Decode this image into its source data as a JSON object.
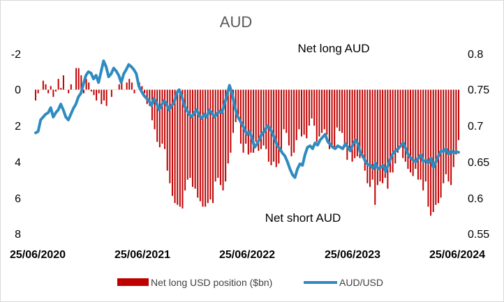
{
  "chart_data": {
    "type": "bar+line",
    "title": "AUD",
    "annotations": [
      "Net long AUD",
      "Net short AUD"
    ],
    "x_tick_labels": [
      "25/06/2020",
      "25/06/2021",
      "25/06/2022",
      "25/06/2023",
      "25/06/2024"
    ],
    "left_axis": {
      "ticks": [
        "-2",
        "0",
        "2",
        "4",
        "6",
        "8"
      ],
      "range": [
        -2,
        8
      ],
      "inverted": true
    },
    "right_axis": {
      "ticks": [
        "0.8",
        "0.75",
        "0.7",
        "0.65",
        "0.6",
        "0.55"
      ],
      "range": [
        0.55,
        0.8
      ]
    },
    "legend_position": "bottom",
    "grid": false,
    "colors": {
      "bars": "#c00000",
      "line": "#2e8bc0",
      "text": "#000000"
    },
    "series": [
      {
        "name": "Net long USD position ($bn)",
        "kind": "bar",
        "axis": "left",
        "date_range": [
          "25/06/2020",
          "25/06/2024"
        ],
        "weekly_values_bn": [
          0.6,
          0.2,
          0.0,
          -0.5,
          -0.3,
          0.2,
          -0.2,
          0.4,
          0.1,
          -0.6,
          -0.1,
          -0.8,
          0.0,
          0.2,
          -0.3,
          0.0,
          -1.2,
          -1.2,
          -0.8,
          0.2,
          -0.6,
          -0.4,
          0.1,
          0.3,
          0.6,
          0.2,
          0.8,
          0.6,
          0.9,
          0.0,
          0.4,
          0.0,
          0.0,
          -0.3,
          -0.4,
          0.0,
          -0.4,
          -0.6,
          -0.4,
          0.2,
          0.0,
          -0.4,
          -0.2,
          0.2,
          0.8,
          0.9,
          1.7,
          2.2,
          2.9,
          3.2,
          3.0,
          3.3,
          4.5,
          5.2,
          5.9,
          6.3,
          6.4,
          6.5,
          6.6,
          5.6,
          5.0,
          4.9,
          5.4,
          5.5,
          6.0,
          6.2,
          6.5,
          6.5,
          6.3,
          6.1,
          6.3,
          5.1,
          4.9,
          5.3,
          5.6,
          5.1,
          4.1,
          3.5,
          2.4,
          1.8,
          1.4,
          3.0,
          3.5,
          3.0,
          3.6,
          3.5,
          3.5,
          2.9,
          3.4,
          3.3,
          3.1,
          3.3,
          4.0,
          4.2,
          4.0,
          4.3,
          4.1,
          3.5,
          2.2,
          2.4,
          3.1,
          3.7,
          3.5,
          2.8,
          2.2,
          2.6,
          2.5,
          2.7,
          2.0,
          1.6,
          2.0,
          2.9,
          2.6,
          2.4,
          2.2,
          2.5,
          3.3,
          3.2,
          3.3,
          2.1,
          2.3,
          2.4,
          3.2,
          3.9,
          3.4,
          4.0,
          3.8,
          3.7,
          3.8,
          3.8,
          4.5,
          5.2,
          5.4,
          5.0,
          6.4,
          5.3,
          5.1,
          5.2,
          4.9,
          5.5,
          4.6,
          4.6,
          4.1,
          3.5,
          3.1,
          3.8,
          4.0,
          4.4,
          4.6,
          4.8,
          4.4,
          5.0,
          5.0,
          5.6,
          5.1,
          6.5,
          7.0,
          6.8,
          6.4,
          6.3,
          6.0,
          5.2,
          4.7,
          5.1,
          5.3,
          4.3,
          3.6,
          2.8
        ]
      },
      {
        "name": "AUD/USD",
        "kind": "line",
        "axis": "right",
        "weekly_values": [
          0.69,
          0.692,
          0.708,
          0.712,
          0.716,
          0.718,
          0.725,
          0.712,
          0.718,
          0.722,
          0.73,
          0.722,
          0.712,
          0.708,
          0.716,
          0.724,
          0.73,
          0.74,
          0.745,
          0.758,
          0.77,
          0.775,
          0.773,
          0.765,
          0.77,
          0.76,
          0.775,
          0.79,
          0.782,
          0.768,
          0.772,
          0.78,
          0.776,
          0.77,
          0.76,
          0.772,
          0.778,
          0.785,
          0.782,
          0.778,
          0.772,
          0.755,
          0.748,
          0.742,
          0.738,
          0.735,
          0.728,
          0.738,
          0.732,
          0.722,
          0.728,
          0.735,
          0.73,
          0.722,
          0.728,
          0.732,
          0.745,
          0.75,
          0.742,
          0.728,
          0.722,
          0.716,
          0.712,
          0.718,
          0.722,
          0.714,
          0.71,
          0.716,
          0.712,
          0.722,
          0.718,
          0.712,
          0.716,
          0.72,
          0.718,
          0.73,
          0.742,
          0.756,
          0.745,
          0.728,
          0.715,
          0.708,
          0.702,
          0.695,
          0.688,
          0.692,
          0.682,
          0.67,
          0.675,
          0.682,
          0.69,
          0.692,
          0.7,
          0.697,
          0.69,
          0.682,
          0.672,
          0.668,
          0.662,
          0.658,
          0.65,
          0.64,
          0.632,
          0.628,
          0.64,
          0.647,
          0.645,
          0.66,
          0.67,
          0.672,
          0.668,
          0.676,
          0.673,
          0.68,
          0.684,
          0.688,
          0.678,
          0.674,
          0.67,
          0.668,
          0.672,
          0.67,
          0.668,
          0.675,
          0.67,
          0.665,
          0.674,
          0.68,
          0.675,
          0.662,
          0.658,
          0.65,
          0.646,
          0.645,
          0.64,
          0.648,
          0.64,
          0.642,
          0.645,
          0.636,
          0.645,
          0.655,
          0.662,
          0.665,
          0.668,
          0.672,
          0.676,
          0.668,
          0.66,
          0.655,
          0.652,
          0.65,
          0.655,
          0.66,
          0.65,
          0.652,
          0.648,
          0.655,
          0.642,
          0.65,
          0.658,
          0.665,
          0.664,
          0.668,
          0.66,
          0.665,
          0.662,
          0.664,
          0.663
        ]
      }
    ]
  }
}
